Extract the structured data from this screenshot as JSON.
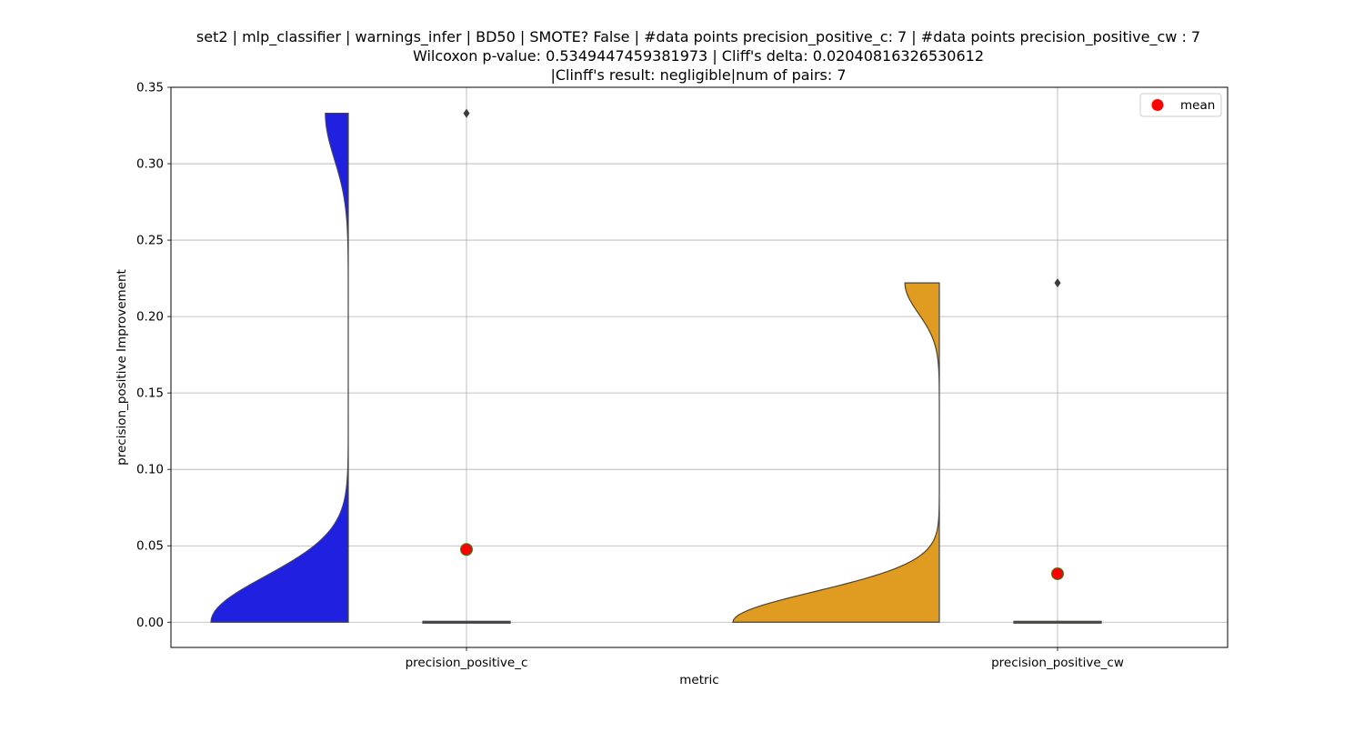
{
  "chart_data": {
    "type": "violin",
    "title_lines": [
      "set2 | mlp_classifier | warnings_infer | BD50 | SMOTE? False | #data points precision_positive_c: 7 | #data points precision_positive_cw : 7",
      "Wilcoxon p-value: 0.5349447459381973 | Cliff's delta: 0.02040816326530612",
      "|Clinff's result: negligible|num of pairs: 7"
    ],
    "xlabel": "metric",
    "ylabel": "precision_positive Improvement",
    "ylim": [
      -0.0165,
      0.35
    ],
    "yticks": [
      0.0,
      0.05,
      0.1,
      0.15,
      0.2,
      0.25,
      0.3,
      0.35
    ],
    "ytick_labels": [
      "0.00",
      "0.05",
      "0.10",
      "0.15",
      "0.20",
      "0.25",
      "0.30",
      "0.35"
    ],
    "categories": [
      "precision_positive_c",
      "precision_positive_cw"
    ],
    "grid": true,
    "legend": {
      "position": "top-right",
      "entries": [
        {
          "label": "mean",
          "color": "#ff0000"
        }
      ]
    },
    "series": [
      {
        "category": "precision_positive_c",
        "color": "#2020e0",
        "violin_max": 0.333,
        "mean": 0.0476,
        "median": 0.0,
        "q1": 0.0,
        "q3": 0.0,
        "outliers": [
          0.333
        ]
      },
      {
        "category": "precision_positive_cw",
        "color": "#e09c20",
        "violin_max": 0.222,
        "mean": 0.0317,
        "median": 0.0,
        "q1": 0.0,
        "q3": 0.0,
        "outliers": [
          0.222
        ]
      }
    ]
  }
}
